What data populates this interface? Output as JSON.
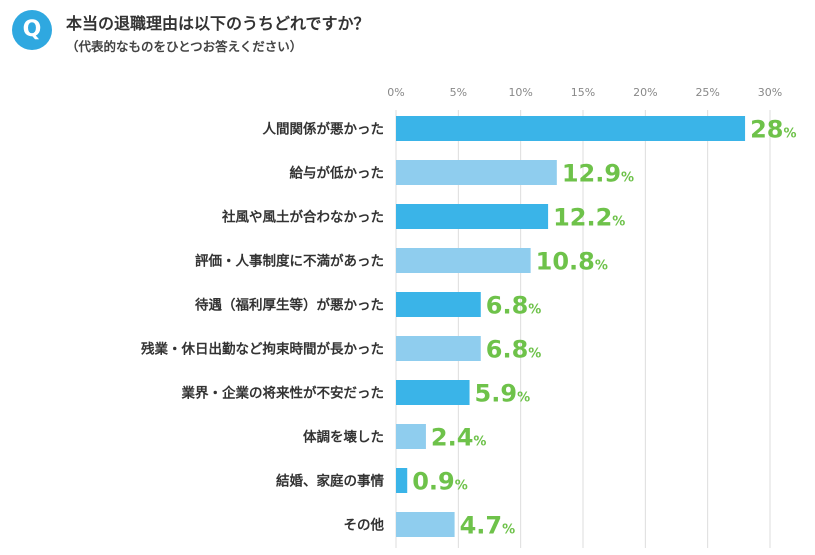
{
  "question": {
    "badge": "Q",
    "title": "本当の退職理由は以下のうちどれですか？",
    "subtitle": "（代表的なものをひとつお答えください）"
  },
  "chart_data": {
    "type": "bar",
    "orientation": "horizontal",
    "categories": [
      "人間関係が悪かった",
      "給与が低かった",
      "社風や風土が合わなかった",
      "評価・人事制度に不満があった",
      "待遇（福利厚生等）が悪かった",
      "残業・休日出勤など拘束時間が長かった",
      "業界・企業の将来性が不安だった",
      "体調を壊した",
      "結婚、家庭の事情",
      "その他"
    ],
    "values": [
      28,
      12.9,
      12.2,
      10.8,
      6.8,
      6.8,
      5.9,
      2.4,
      0.9,
      4.7
    ],
    "value_labels": [
      "28",
      "12.9",
      "12.2",
      "10.8",
      "6.8",
      "6.8",
      "5.9",
      "2.4",
      "0.9",
      "4.7"
    ],
    "value_unit": "%",
    "xlim": [
      0,
      30
    ],
    "ticks": [
      "0%",
      "5%",
      "10%",
      "15%",
      "20%",
      "25%",
      "30%"
    ],
    "tick_values": [
      0,
      5,
      10,
      15,
      20,
      25,
      30
    ],
    "grid": true,
    "colors": {
      "bar_dark": "#3ab4e8",
      "bar_light": "#8fcdee",
      "value_label": "#6ec24a",
      "grid": "#dddddd"
    }
  }
}
